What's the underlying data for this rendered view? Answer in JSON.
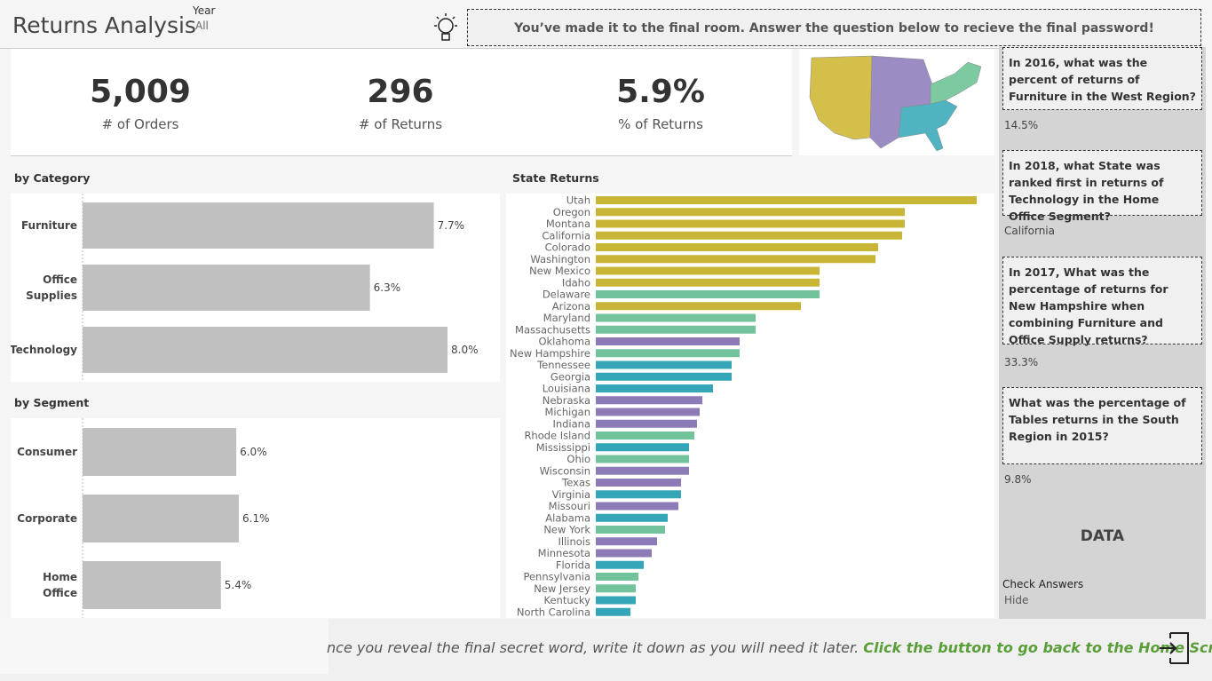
{
  "header": {
    "title": "Returns Analysis",
    "filter_label": "Year",
    "filter_value": "All",
    "banner": "You’ve made it to the final room. Answer the question below to recieve the final password!"
  },
  "kpis": [
    {
      "value": "5,009",
      "label": "# of Orders"
    },
    {
      "value": "296",
      "label": "# of Returns"
    },
    {
      "value": "5.9%",
      "label": "% of Returns"
    }
  ],
  "chart_data": [
    {
      "type": "bar",
      "title": "by Category",
      "categories": [
        "Furniture",
        "Office Supplies",
        "Technology"
      ],
      "values": [
        7.7,
        6.3,
        8.0
      ],
      "value_labels": [
        "7.7%",
        "6.3%",
        "8.0%"
      ],
      "color": "#c0c0c0"
    },
    {
      "type": "bar",
      "title": "by Segment",
      "categories": [
        "Consumer",
        "Corporate",
        "Home Office"
      ],
      "values": [
        6.0,
        6.1,
        5.4
      ],
      "value_labels": [
        "6.0%",
        "6.1%",
        "5.4%"
      ],
      "color": "#c0c0c0"
    },
    {
      "type": "bar",
      "title": "State Returns",
      "categories": [
        "Utah",
        "Oregon",
        "Montana",
        "California",
        "Colorado",
        "Washington",
        "New Mexico",
        "Idaho",
        "Delaware",
        "Arizona",
        "Maryland",
        "Massachusetts",
        "Oklahoma",
        "New Hampshire",
        "Tennessee",
        "Georgia",
        "Louisiana",
        "Nebraska",
        "Michigan",
        "Indiana",
        "Rhode Island",
        "Mississippi",
        "Ohio",
        "Wisconsin",
        "Texas",
        "Virginia",
        "Missouri",
        "Alabama",
        "New York",
        "Illinois",
        "Minnesota",
        "Florida",
        "Pennsylvania",
        "New Jersey",
        "Kentucky",
        "North Carolina"
      ],
      "values": [
        14.3,
        11.6,
        11.6,
        11.5,
        10.6,
        10.5,
        8.4,
        8.4,
        8.4,
        7.7,
        6.0,
        6.0,
        5.4,
        5.4,
        5.1,
        5.1,
        4.4,
        4.0,
        3.9,
        3.8,
        3.7,
        3.5,
        3.5,
        3.5,
        3.2,
        3.2,
        3.1,
        2.7,
        2.6,
        2.3,
        2.1,
        1.8,
        1.6,
        1.5,
        1.5,
        1.3
      ],
      "colors": [
        "#c9b535",
        "#c9b535",
        "#c9b535",
        "#c9b535",
        "#c9b535",
        "#c9b535",
        "#c9b535",
        "#c9b535",
        "#72c29b",
        "#c9b535",
        "#72c29b",
        "#72c29b",
        "#8d7bb8",
        "#72c29b",
        "#35a6b8",
        "#35a6b8",
        "#35a6b8",
        "#8d7bb8",
        "#8d7bb8",
        "#8d7bb8",
        "#72c29b",
        "#35a6b8",
        "#72c29b",
        "#8d7bb8",
        "#8d7bb8",
        "#35a6b8",
        "#8d7bb8",
        "#35a6b8",
        "#72c29b",
        "#8d7bb8",
        "#8d7bb8",
        "#35a6b8",
        "#72c29b",
        "#72c29b",
        "#35a6b8",
        "#35a6b8"
      ]
    }
  ],
  "questions": [
    {
      "question": "In 2016, what was the percent of returns of Furniture in the West Region?",
      "answer": "14.5%"
    },
    {
      "question": "In 2018, what State was ranked first in returns of Technology in the Home Office Segment?",
      "answer": "California"
    },
    {
      "question": "In 2017, What was the percentage of returns for New Hampshire when combining Furniture and Office Supply returns?",
      "answer": "33.3%"
    },
    {
      "question": "What was the percentage of Tables returns in the South Region in 2015?",
      "answer": "9.8%"
    }
  ],
  "sidebar": {
    "heading": "DATA",
    "check_label": "Check Answers",
    "check_value": "Hide"
  },
  "footer": {
    "text": "nce you reveal the final secret word, write it down as you will need it later.",
    "link": "Click the button to go back to the Home Screen"
  }
}
